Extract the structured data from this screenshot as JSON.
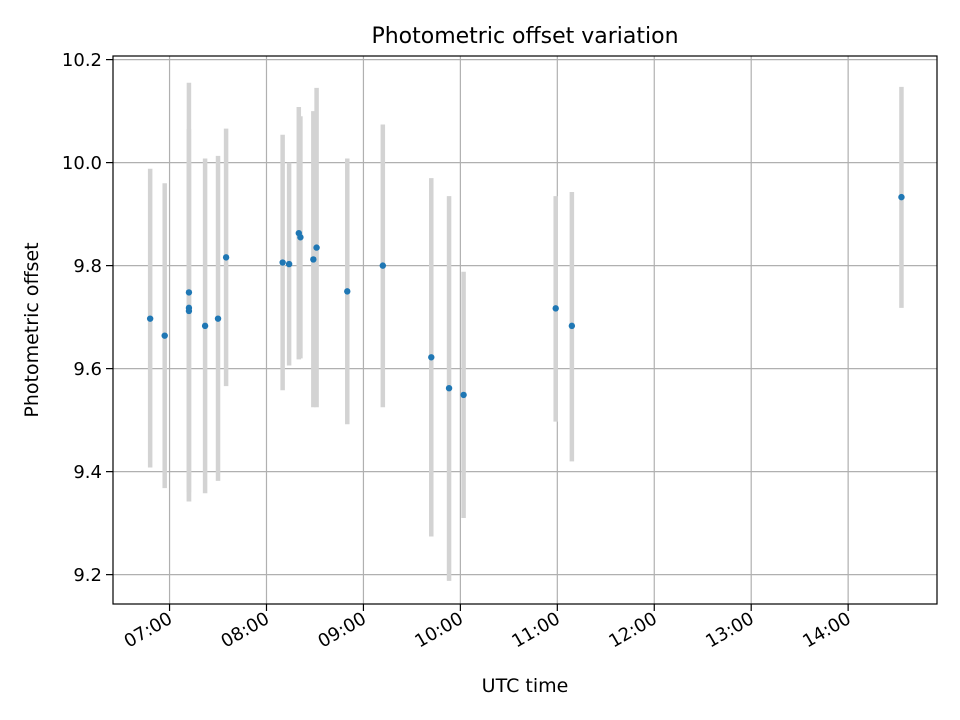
{
  "chart_data": {
    "type": "scatter",
    "title": "Photometric offset variation",
    "xlabel": "UTC time",
    "ylabel": "Photometric offset",
    "xlim": [
      "06:25",
      "14:55"
    ],
    "ylim": [
      9.143,
      10.207
    ],
    "grid": true,
    "x_ticks": [
      "07:00",
      "08:00",
      "09:00",
      "10:00",
      "11:00",
      "12:00",
      "13:00",
      "14:00"
    ],
    "y_ticks": [
      9.2,
      9.4,
      9.6,
      9.8,
      10.0,
      10.2
    ],
    "y_tick_labels": [
      "9.2",
      "9.4",
      "9.6",
      "9.8",
      "10.0",
      "10.2"
    ],
    "colors": {
      "point": "#1f77b4",
      "errorbar": "#d3d3d3",
      "grid": "#b0b0b0"
    },
    "series": [
      {
        "points": [
          {
            "x": "06:48",
            "y": 9.697,
            "low": 9.408,
            "high": 9.988
          },
          {
            "x": "06:57",
            "y": 9.664,
            "low": 9.368,
            "high": 9.96
          },
          {
            "x": "07:12",
            "y": 9.748,
            "low": 9.36,
            "high": 10.155
          },
          {
            "x": "07:12",
            "y": 9.718,
            "low": 9.342,
            "high": 10.065
          },
          {
            "x": "07:12",
            "y": 9.712,
            "low": 9.342,
            "high": 10.0
          },
          {
            "x": "07:22",
            "y": 9.683,
            "low": 9.358,
            "high": 10.008
          },
          {
            "x": "07:30",
            "y": 9.697,
            "low": 9.382,
            "high": 10.013
          },
          {
            "x": "07:35",
            "y": 9.816,
            "low": 9.566,
            "high": 10.066
          },
          {
            "x": "08:10",
            "y": 9.806,
            "low": 9.558,
            "high": 10.054
          },
          {
            "x": "08:14",
            "y": 9.803,
            "low": 9.606,
            "high": 10.0
          },
          {
            "x": "08:20",
            "y": 9.863,
            "low": 9.618,
            "high": 10.108
          },
          {
            "x": "08:21",
            "y": 9.855,
            "low": 9.62,
            "high": 10.09
          },
          {
            "x": "08:29",
            "y": 9.812,
            "low": 9.525,
            "high": 10.1
          },
          {
            "x": "08:31",
            "y": 9.835,
            "low": 9.525,
            "high": 10.145
          },
          {
            "x": "08:50",
            "y": 9.75,
            "low": 9.492,
            "high": 10.008
          },
          {
            "x": "09:12",
            "y": 9.8,
            "low": 9.525,
            "high": 10.074
          },
          {
            "x": "09:42",
            "y": 9.622,
            "low": 9.274,
            "high": 9.97
          },
          {
            "x": "09:53",
            "y": 9.562,
            "low": 9.188,
            "high": 9.935
          },
          {
            "x": "10:02",
            "y": 9.549,
            "low": 9.31,
            "high": 9.788
          },
          {
            "x": "10:59",
            "y": 9.717,
            "low": 9.497,
            "high": 9.935
          },
          {
            "x": "11:09",
            "y": 9.683,
            "low": 9.42,
            "high": 9.943
          },
          {
            "x": "14:33",
            "y": 9.933,
            "low": 9.718,
            "high": 10.147
          }
        ]
      }
    ]
  }
}
